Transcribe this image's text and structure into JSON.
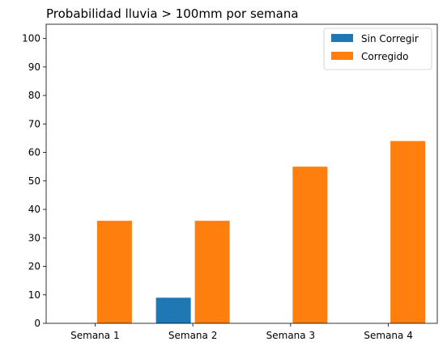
{
  "chart_data": {
    "type": "bar",
    "title": "Probabilidad lluvia > 100mm por semana",
    "xlabel": "",
    "ylabel": "",
    "categories": [
      "Semana 1",
      "Semana 2",
      "Semana 3",
      "Semana 4"
    ],
    "series": [
      {
        "name": "Sin Corregir",
        "color": "#1f77b4",
        "values": [
          0,
          9,
          0,
          0
        ]
      },
      {
        "name": "Corregido",
        "color": "#ff7f0e",
        "values": [
          36,
          36,
          55,
          64
        ]
      }
    ],
    "ylim": [
      0,
      105
    ],
    "yticks": [
      0,
      10,
      20,
      30,
      40,
      50,
      60,
      70,
      80,
      90,
      100
    ],
    "grid": false,
    "legend": "top-right"
  }
}
